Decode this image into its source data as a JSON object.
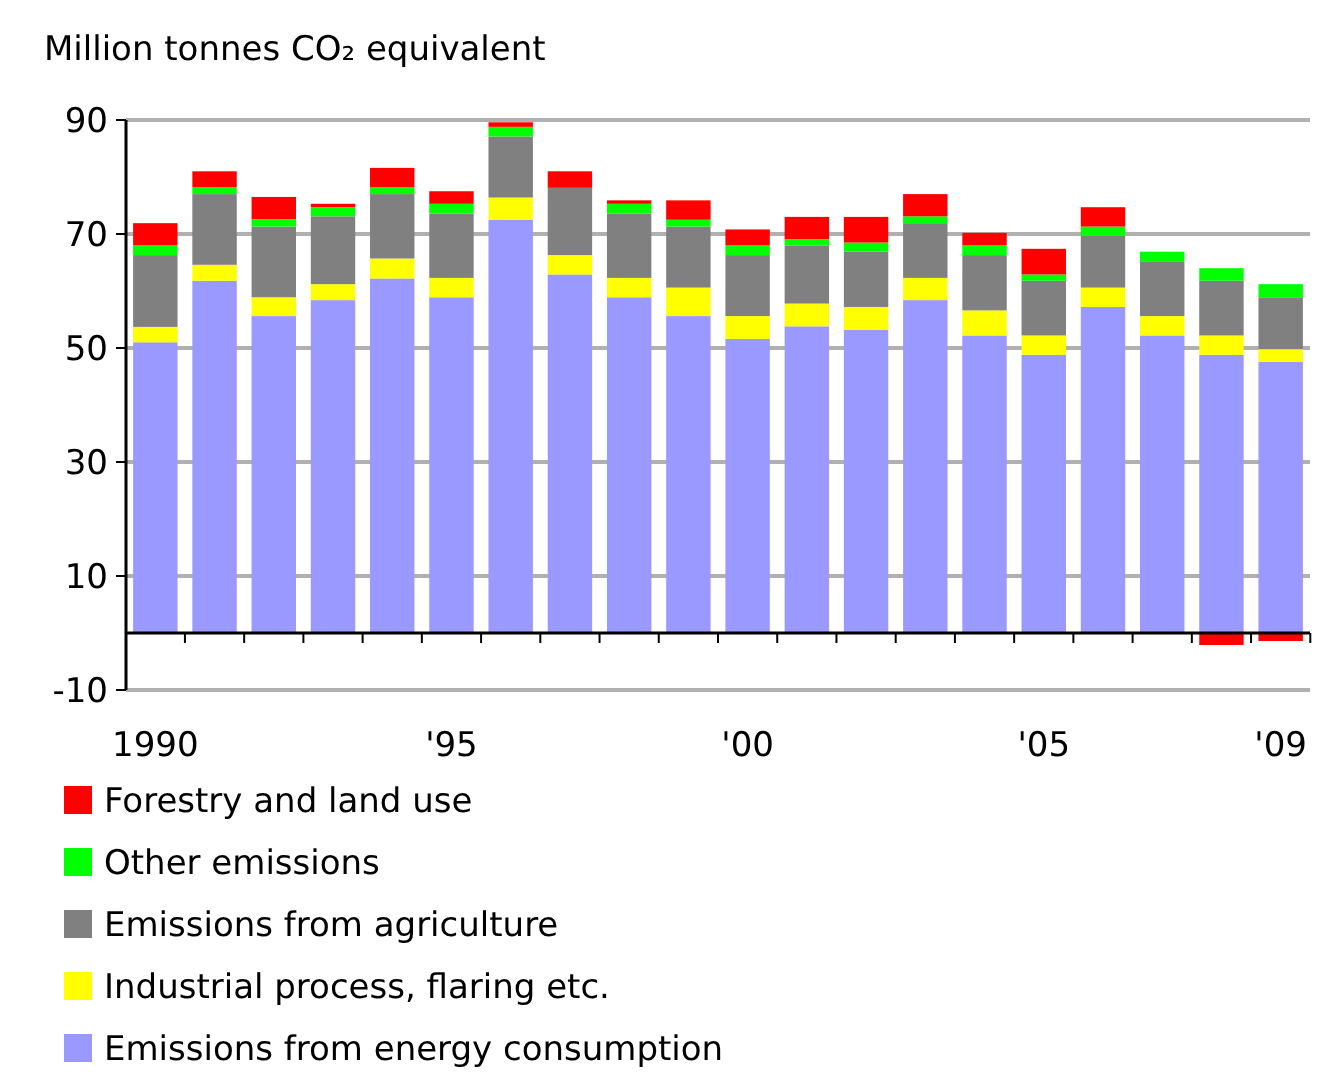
{
  "chart_data": {
    "type": "bar",
    "stacked": true,
    "ylabel": "Million tonnes CO₂ equivalent",
    "categories": [
      "1990",
      null,
      null,
      null,
      null,
      "'95",
      null,
      null,
      null,
      null,
      "'00",
      null,
      null,
      null,
      null,
      "'05",
      null,
      null,
      null,
      "'09"
    ],
    "ylim": [
      -10,
      90
    ],
    "yticks": [
      -10,
      10,
      30,
      50,
      70,
      90
    ],
    "grid": "y",
    "legend": "bottom",
    "series": [
      {
        "name": "Emissions from energy consumption",
        "color": "#9999ff",
        "values": [
          51.0,
          61.8,
          55.6,
          58.4,
          62.2,
          58.9,
          72.5,
          62.9,
          58.9,
          55.6,
          51.6,
          53.8,
          53.2,
          58.4,
          52.2,
          48.8,
          57.2,
          52.2,
          48.8,
          47.6
        ]
      },
      {
        "name": "Industrial process, flaring etc.",
        "color": "#ffff00",
        "values": [
          2.7,
          2.8,
          3.3,
          2.8,
          3.5,
          3.4,
          3.9,
          3.4,
          3.4,
          5.0,
          4.0,
          4.0,
          4.0,
          3.9,
          4.4,
          3.4,
          3.4,
          3.4,
          3.4,
          2.2
        ]
      },
      {
        "name": "Emissions from agriculture",
        "color": "#808080",
        "values": [
          12.6,
          12.4,
          12.4,
          11.9,
          11.3,
          11.3,
          10.7,
          11.8,
          11.3,
          10.7,
          10.7,
          10.2,
          9.7,
          9.6,
          9.7,
          9.6,
          9.1,
          9.5,
          9.6,
          9.1
        ]
      },
      {
        "name": "Other emissions",
        "color": "#00ff00",
        "values": [
          1.7,
          1.2,
          1.3,
          1.6,
          1.2,
          1.7,
          1.7,
          null,
          1.7,
          1.2,
          1.7,
          1.1,
          1.6,
          1.2,
          1.7,
          1.1,
          1.6,
          1.8,
          2.2,
          2.3
        ]
      },
      {
        "name": "Forestry and land use",
        "color": "#ff0000",
        "values": [
          3.9,
          2.8,
          3.9,
          0.6,
          3.4,
          2.2,
          0.8,
          2.9,
          0.6,
          3.4,
          2.8,
          3.9,
          4.5,
          3.9,
          2.2,
          4.5,
          3.4,
          null,
          -2.1,
          -1.4
        ]
      }
    ]
  }
}
